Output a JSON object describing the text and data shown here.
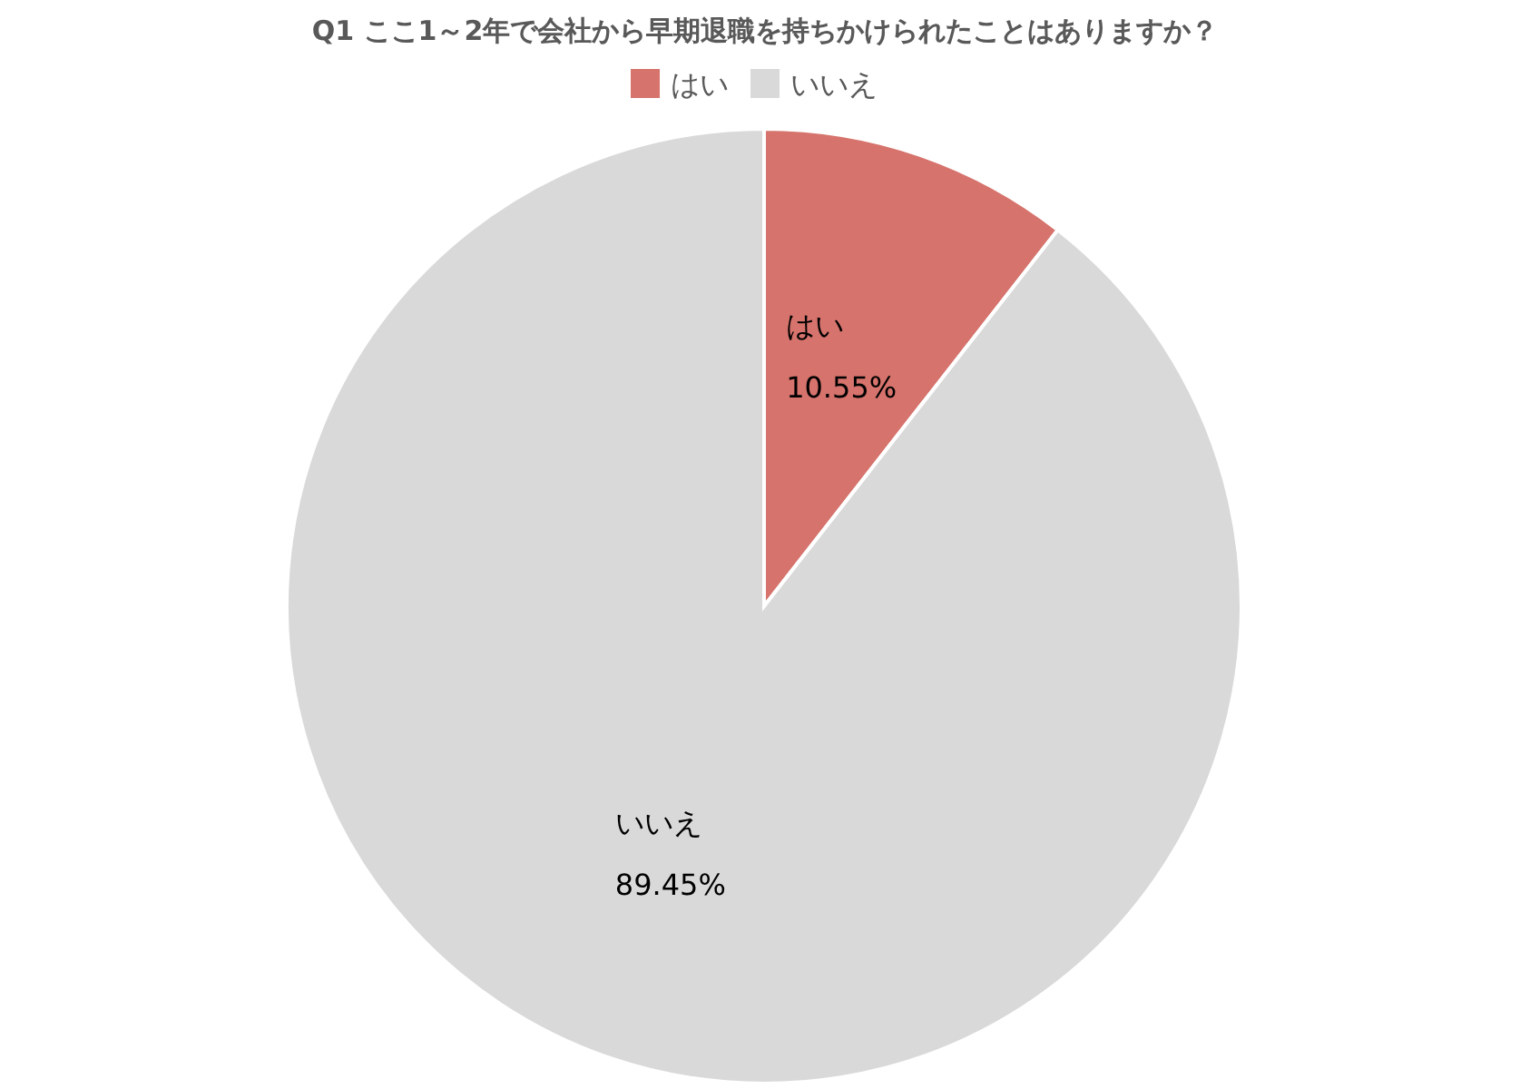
{
  "chart_data": {
    "type": "pie",
    "title": "Q1 ここ1～2年で会社から早期退職を持ちかけられたことはありますか？",
    "categories": [
      "はい",
      "いいえ"
    ],
    "values": [
      10.55,
      89.45
    ],
    "colors": [
      "#d6736c",
      "#d9d9d9"
    ],
    "value_labels": [
      "10.55%",
      "89.45%"
    ],
    "legend": "top"
  }
}
